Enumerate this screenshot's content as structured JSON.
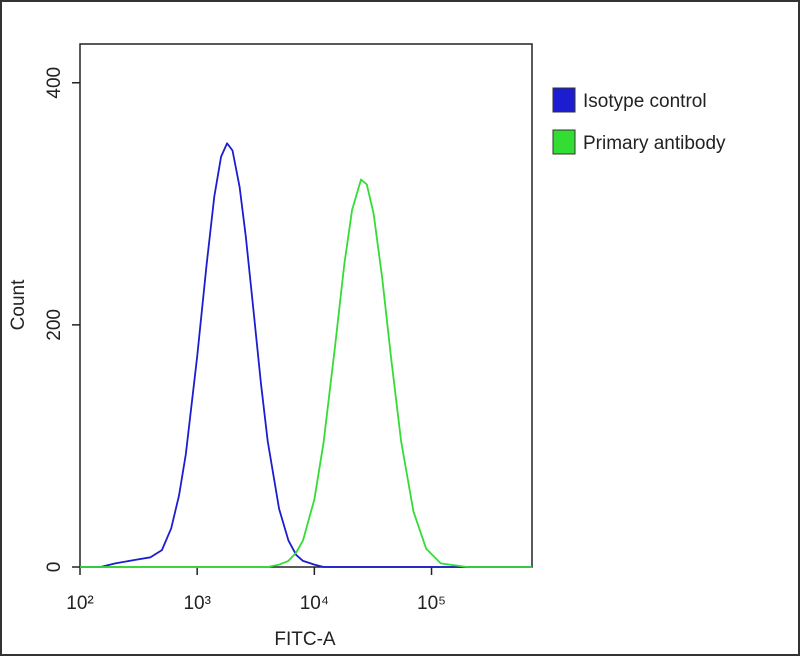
{
  "chart_data": {
    "type": "line",
    "xlabel": "FITC-A",
    "ylabel": "Count",
    "x": [
      100,
      150,
      200,
      300,
      400,
      500,
      600,
      700,
      800,
      1000,
      1200,
      1400,
      1600,
      1800,
      2000,
      2300,
      2600,
      3000,
      3500,
      4000,
      5000,
      6000,
      7000,
      8000,
      10000,
      12000,
      15000,
      18000,
      21000,
      25000,
      28000,
      32000,
      38000,
      45000,
      55000,
      70000,
      90000,
      120000,
      200000,
      400000,
      720000
    ],
    "series": [
      {
        "name": "Isotype control",
        "color": "#1c1cd0",
        "values": [
          0,
          0,
          3,
          6,
          8,
          14,
          32,
          59,
          93,
          174,
          249,
          306,
          339,
          350,
          344,
          314,
          273,
          215,
          152,
          104,
          48,
          22,
          10,
          5,
          2,
          0,
          0,
          0,
          0,
          0,
          0,
          0,
          0,
          0,
          0,
          0,
          0,
          0,
          0,
          0,
          0
        ]
      },
      {
        "name": "Primary antibody",
        "color": "#33dd33",
        "values": [
          0,
          0,
          0,
          0,
          0,
          0,
          0,
          0,
          0,
          0,
          0,
          0,
          0,
          0,
          0,
          0,
          0,
          0,
          0,
          0,
          2,
          5,
          12,
          22,
          56,
          103,
          182,
          250,
          295,
          320,
          316,
          292,
          238,
          174,
          104,
          46,
          15,
          3,
          0,
          0,
          0
        ]
      }
    ],
    "xscale": "log",
    "xlim": [
      100,
      720000
    ],
    "xticks": [
      {
        "value": 100,
        "label": "10²"
      },
      {
        "value": 1000,
        "label": "10³"
      },
      {
        "value": 10000,
        "label": "10⁴"
      },
      {
        "value": 100000,
        "label": "10⁵"
      }
    ],
    "ylim": [
      0,
      432
    ],
    "yticks": [
      0,
      200,
      400
    ],
    "legend": "outside-right"
  }
}
